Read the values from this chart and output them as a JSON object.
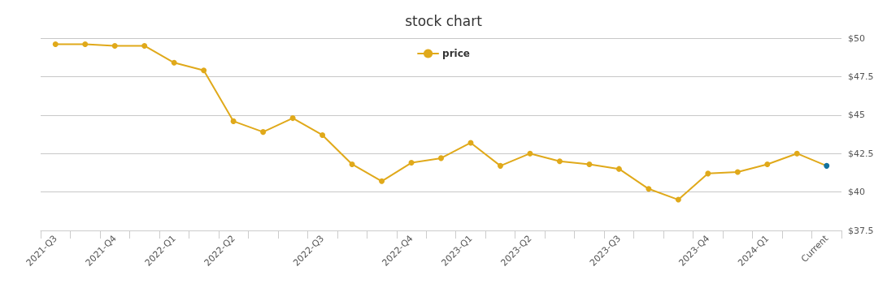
{
  "chart_data": {
    "type": "line",
    "title": "stock chart",
    "categories": [
      "2021-Q3",
      null,
      "2021-Q4",
      null,
      "2022-Q1",
      null,
      "2022-Q2",
      null,
      null,
      "2022-Q3",
      null,
      null,
      "2022-Q4",
      null,
      "2023-Q1",
      null,
      "2023-Q2",
      null,
      null,
      "2023-Q3",
      null,
      null,
      "2023-Q4",
      null,
      "2024-Q1",
      null,
      "Current"
    ],
    "series": [
      {
        "name": "price",
        "color": "#e0a91a",
        "colors": [
          "#e0a91a",
          "#e0a91a",
          "#e0a91a",
          "#e0a91a",
          "#e0a91a",
          "#e0a91a",
          "#e0a91a",
          "#e0a91a",
          "#e0a91a",
          "#e0a91a",
          "#e0a91a",
          "#e0a91a",
          "#e0a91a",
          "#e0a91a",
          "#e0a91a",
          "#e0a91a",
          "#e0a91a",
          "#e0a91a",
          "#e0a91a",
          "#e0a91a",
          "#e0a91a",
          "#e0a91a",
          "#e0a91a",
          "#e0a91a",
          "#e0a91a",
          "#e0a91a",
          "#13729e"
        ],
        "values": [
          49.6,
          49.6,
          49.5,
          49.5,
          48.4,
          47.9,
          44.6,
          43.9,
          44.8,
          43.7,
          41.8,
          40.7,
          41.9,
          42.2,
          43.2,
          41.7,
          42.5,
          42.0,
          41.8,
          41.5,
          40.2,
          39.5,
          41.2,
          41.3,
          41.8,
          42.5,
          41.7
        ]
      }
    ],
    "ylim": [
      37.5,
      50
    ],
    "yticks": [
      {
        "value": 37.5,
        "label": "$37.5"
      },
      {
        "value": 40,
        "label": "$40"
      },
      {
        "value": 42.5,
        "label": "$42.5"
      },
      {
        "value": 45,
        "label": "$45"
      },
      {
        "value": 47.5,
        "label": "$47.5"
      },
      {
        "value": 50,
        "label": "$50"
      }
    ],
    "grid": "y",
    "legend": "top",
    "marker": "circle",
    "line_style": "solid"
  }
}
